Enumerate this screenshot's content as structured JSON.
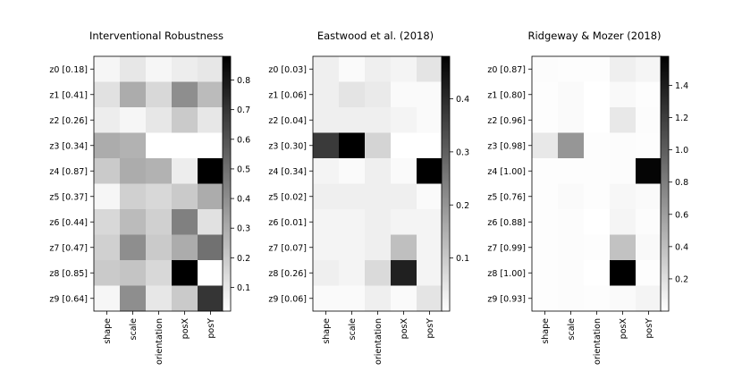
{
  "chart_data": [
    {
      "type": "heatmap",
      "title": "Interventional Robustness",
      "row_labels": [
        "z0 [0.18]",
        "z1 [0.41]",
        "z2 [0.26]",
        "z3 [0.34]",
        "z4 [0.87]",
        "z5 [0.37]",
        "z6 [0.44]",
        "z7 [0.47]",
        "z8 [0.85]",
        "z9 [0.64]"
      ],
      "col_labels": [
        "shape",
        "scale",
        "orientation",
        "posX",
        "posY"
      ],
      "values": [
        [
          0.05,
          0.1,
          0.05,
          0.08,
          0.1
        ],
        [
          0.12,
          0.3,
          0.15,
          0.4,
          0.25
        ],
        [
          0.08,
          0.05,
          0.1,
          0.2,
          0.1
        ],
        [
          0.3,
          0.28,
          0.0,
          0.0,
          0.02
        ],
        [
          0.2,
          0.3,
          0.28,
          0.08,
          0.88
        ],
        [
          0.05,
          0.18,
          0.15,
          0.2,
          0.3
        ],
        [
          0.15,
          0.25,
          0.18,
          0.45,
          0.12
        ],
        [
          0.18,
          0.4,
          0.2,
          0.3,
          0.5
        ],
        [
          0.2,
          0.22,
          0.15,
          0.88,
          0.02
        ],
        [
          0.05,
          0.4,
          0.1,
          0.2,
          0.7
        ]
      ],
      "colorbar": {
        "range": [
          0.02,
          0.88
        ],
        "ticks": [
          0.1,
          0.2,
          0.3,
          0.4,
          0.5,
          0.6,
          0.7,
          0.8
        ],
        "tick_labels": [
          "0.1",
          "0.2",
          "0.3",
          "0.4",
          "0.5",
          "0.6",
          "0.7",
          "0.8"
        ]
      },
      "colormap": "Greys"
    },
    {
      "type": "heatmap",
      "title": "Eastwood et al. (2018)",
      "row_labels": [
        "z0 [0.03]",
        "z1 [0.06]",
        "z2 [0.04]",
        "z3 [0.30]",
        "z4 [0.34]",
        "z5 [0.02]",
        "z6 [0.01]",
        "z7 [0.07]",
        "z8 [0.26]",
        "z9 [0.06]"
      ],
      "col_labels": [
        "shape",
        "scale",
        "orientation",
        "posX",
        "posY"
      ],
      "values": [
        [
          0.03,
          0.01,
          0.03,
          0.02,
          0.05
        ],
        [
          0.03,
          0.05,
          0.04,
          0.01,
          0.01
        ],
        [
          0.03,
          0.03,
          0.03,
          0.02,
          0.01
        ],
        [
          0.37,
          0.48,
          0.08,
          0.0,
          0.0
        ],
        [
          0.02,
          0.01,
          0.03,
          0.01,
          0.48
        ],
        [
          0.03,
          0.03,
          0.03,
          0.03,
          0.01
        ],
        [
          0.02,
          0.02,
          0.03,
          0.02,
          0.02
        ],
        [
          0.02,
          0.02,
          0.03,
          0.12,
          0.02
        ],
        [
          0.03,
          0.02,
          0.07,
          0.42,
          0.02
        ],
        [
          0.01,
          0.01,
          0.03,
          0.01,
          0.05
        ]
      ],
      "colorbar": {
        "range": [
          0.0,
          0.48
        ],
        "ticks": [
          0.1,
          0.2,
          0.3,
          0.4
        ],
        "tick_labels": [
          "0.1",
          "0.2",
          "0.3",
          "0.4"
        ]
      },
      "colormap": "Greys"
    },
    {
      "type": "heatmap",
      "title": "Ridgeway & Mozer (2018)",
      "row_labels": [
        "z0 [0.87]",
        "z1 [0.80]",
        "z2 [0.96]",
        "z3 [0.98]",
        "z4 [1.00]",
        "z5 [0.76]",
        "z6 [0.88]",
        "z7 [0.99]",
        "z8 [1.00]",
        "z9 [0.93]"
      ],
      "col_labels": [
        "shape",
        "scale",
        "orientation",
        "posX",
        "posY"
      ],
      "values": [
        [
          0.02,
          0.01,
          0.01,
          0.1,
          0.06
        ],
        [
          0.01,
          0.03,
          0.0,
          0.04,
          0.01
        ],
        [
          0.01,
          0.03,
          0.0,
          0.14,
          0.02
        ],
        [
          0.14,
          0.65,
          0.01,
          0.02,
          0.01
        ],
        [
          0.01,
          0.01,
          0.01,
          0.02,
          1.55
        ],
        [
          0.01,
          0.03,
          0.01,
          0.05,
          0.03
        ],
        [
          0.01,
          0.02,
          0.0,
          0.06,
          0.02
        ],
        [
          0.01,
          0.02,
          0.01,
          0.38,
          0.04
        ],
        [
          0.01,
          0.02,
          0.0,
          1.58,
          0.01
        ],
        [
          0.01,
          0.02,
          0.01,
          0.03,
          0.07
        ]
      ],
      "colorbar": {
        "range": [
          0.0,
          1.58
        ],
        "ticks": [
          0.2,
          0.4,
          0.6,
          0.8,
          1.0,
          1.2,
          1.4
        ],
        "tick_labels": [
          "0.2",
          "0.4",
          "0.6",
          "0.8",
          "1.0",
          "1.2",
          "1.4"
        ]
      },
      "colormap": "Greys"
    }
  ]
}
